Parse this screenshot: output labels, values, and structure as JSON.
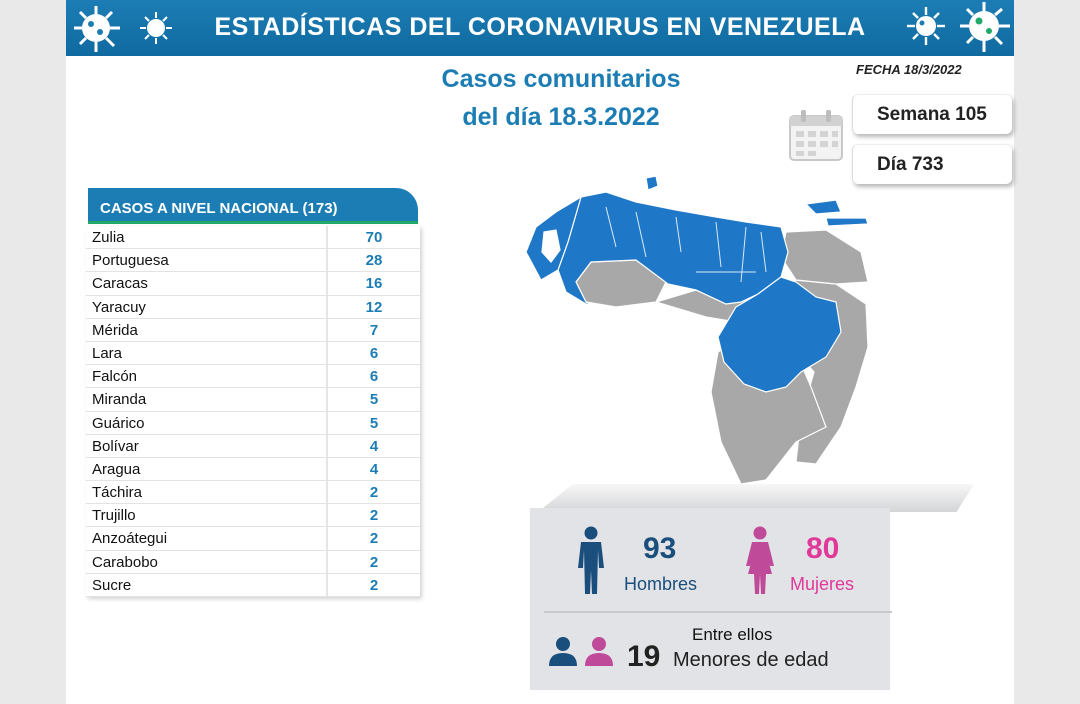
{
  "banner": {
    "title": "ESTADÍSTICAS DEL CORONAVIRUS EN VENEZUELA"
  },
  "header": {
    "subtitle_line1": "Casos comunitarios",
    "subtitle_line2": "del día 18.3.2022",
    "fecha": "FECHA 18/3/2022"
  },
  "counters": {
    "semana": "Semana 105",
    "dia": "Día 733"
  },
  "national": {
    "header": "CASOS A NIVEL NACIONAL  (173)",
    "rows": [
      {
        "state": "Zulia",
        "value": "70"
      },
      {
        "state": "Portuguesa",
        "value": "28"
      },
      {
        "state": "Caracas",
        "value": "16"
      },
      {
        "state": "Yaracuy",
        "value": "12"
      },
      {
        "state": "Mérida",
        "value": "7"
      },
      {
        "state": "Lara",
        "value": "6"
      },
      {
        "state": "Falcón",
        "value": "6"
      },
      {
        "state": "Miranda",
        "value": "5"
      },
      {
        "state": "Guárico",
        "value": "5"
      },
      {
        "state": "Bolívar",
        "value": "4"
      },
      {
        "state": "Aragua",
        "value": "4"
      },
      {
        "state": "Táchira",
        "value": "2"
      },
      {
        "state": "Trujillo",
        "value": "2"
      },
      {
        "state": "Anzoátegui",
        "value": "2"
      },
      {
        "state": "Carabobo",
        "value": "2"
      },
      {
        "state": "Sucre",
        "value": "2"
      }
    ]
  },
  "stats": {
    "men_count": "93",
    "men_label": "Hombres",
    "women_count": "80",
    "women_label": "Mujeres",
    "minors_intro": "Entre ellos",
    "minors_count": "19",
    "minors_label": "Menores de edad"
  },
  "colors": {
    "brand_blue": "#1c7db4",
    "green": "#21a86b",
    "male": "#1a4e7c",
    "female": "#c04a9a",
    "women_text": "#e0399a",
    "map_active": "#1f77c8",
    "map_inactive": "#a8a8a8"
  }
}
